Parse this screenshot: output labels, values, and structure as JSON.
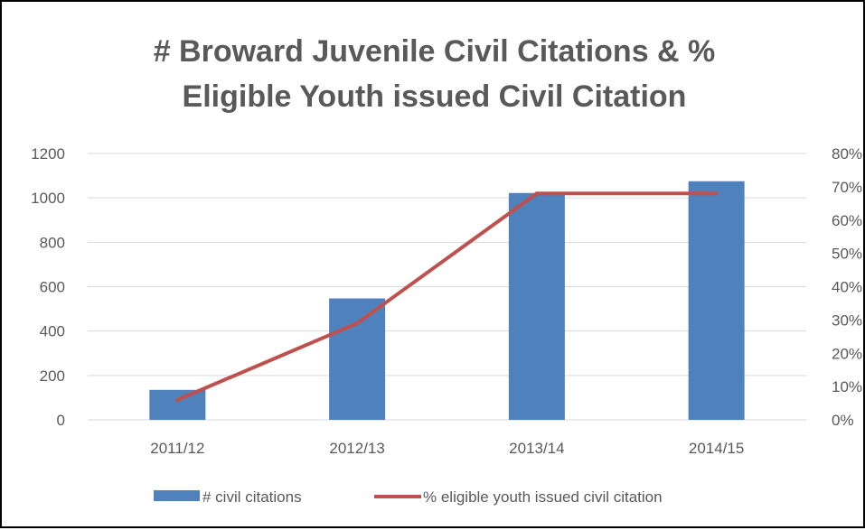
{
  "chart_data": {
    "type": "bar",
    "title_lines": [
      "# Broward Juvenile Civil Citations & %",
      "Eligible Youth issued Civil Citation"
    ],
    "categories": [
      "2011/12",
      "2012/13",
      "2013/14",
      "2014/15"
    ],
    "series": [
      {
        "name": "# civil citations",
        "type": "bar",
        "axis": "left",
        "values": [
          135,
          547,
          1022,
          1075
        ],
        "color": "#4F81BD"
      },
      {
        "name": "% eligible youth issued civil citation",
        "type": "line",
        "axis": "right",
        "values": [
          6,
          29,
          68,
          68
        ],
        "color": "#C0504D"
      }
    ],
    "y_left": {
      "min": 0,
      "max": 1200,
      "ticks": [
        "0",
        "200",
        "400",
        "600",
        "800",
        "1000",
        "1200"
      ]
    },
    "y_right": {
      "min": 0,
      "max": 80,
      "ticks": [
        "0%",
        "10%",
        "20%",
        "30%",
        "40%",
        "50%",
        "60%",
        "70%",
        "80%"
      ]
    },
    "grid": true,
    "legend_position": "bottom"
  }
}
